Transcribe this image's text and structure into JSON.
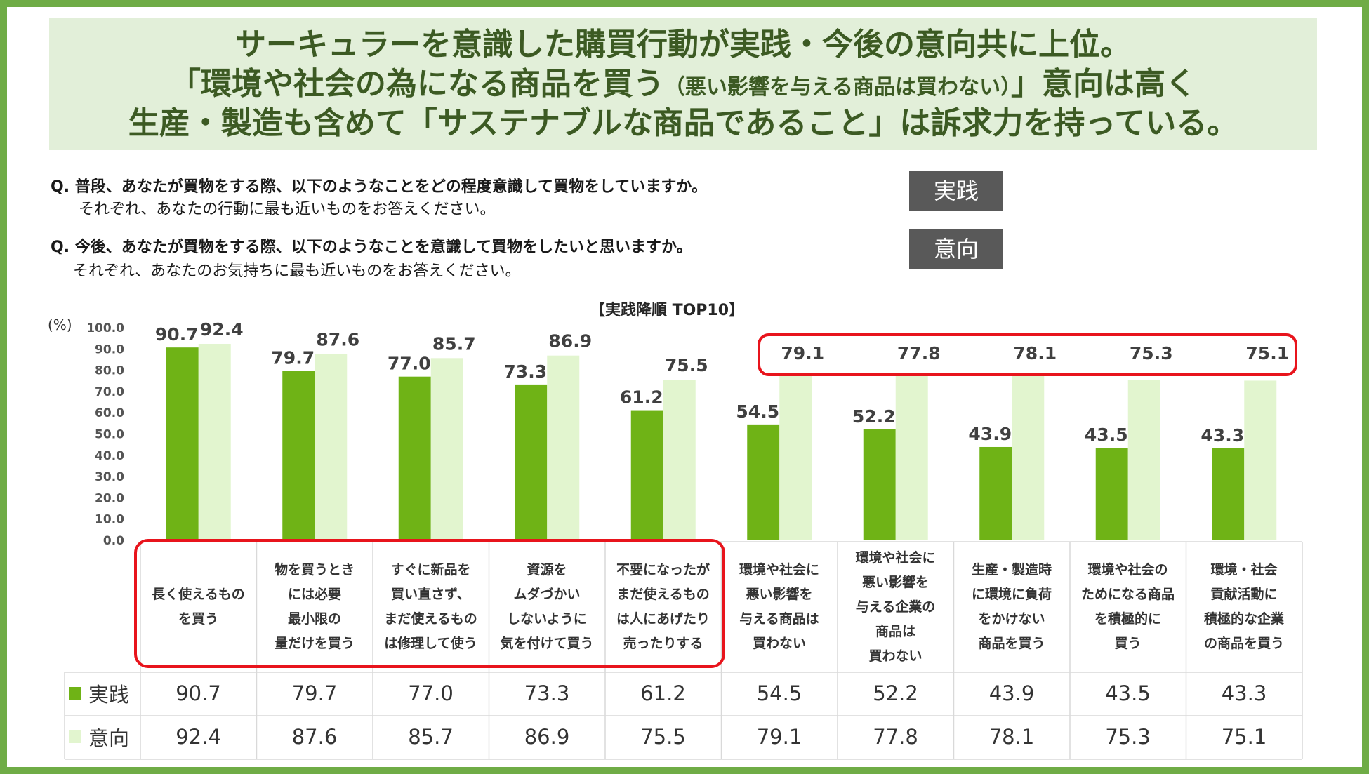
{
  "header": {
    "line1": "サーキュラーを意識した購買行動が実践・今後の意向共に上位。",
    "line2_a": "「環境や社会の為になる商品を買う",
    "line2_small": "（悪い影響を与える商品は買わない）",
    "line2_b": "」意向は高く",
    "line3": "生産・製造も含めて「サステナブルな商品であること」は訴求力を持っている。"
  },
  "questions": {
    "q1": "Q.  普段、あなたが買物をする際、以下のようなことをどの程度意識して買物をしていますか。",
    "q1_sub": "それぞれ、あなたの行動に最も近いものをお答えください。",
    "q2": "Q.  今後、あなたが買物をする際、以下のようなことを意識して買物をしたいと思いますか。",
    "q2_sub": "それぞれ、あなたのお気持ちに最も近いものをお答えください。",
    "badge1": "実践",
    "badge2": "意向"
  },
  "colors": {
    "practice": "#6fb316",
    "intention": "#e2f5cf",
    "frame": "#6fac46",
    "highlight": "#e8141c"
  },
  "chart_data": {
    "type": "bar",
    "title": "【実践降順 TOP10】",
    "ylabel": "(%)",
    "ylim": [
      0,
      100
    ],
    "yticks": [
      "0.0",
      "10.0",
      "20.0",
      "30.0",
      "40.0",
      "50.0",
      "60.0",
      "70.0",
      "80.0",
      "90.0",
      "100.0"
    ],
    "categories": [
      "長く使えるもの\nを買う",
      "物を買うとき\nには必要\n最小限の\n量だけを買う",
      "すぐに新品を\n買い直さず、\nまだ使えるもの\nは修理して使う",
      "資源を\nムダづかい\nしないように\n気を付けて買う",
      "不要になったが\nまだ使えるもの\nは人にあげたり\n売ったりする",
      "環境や社会に\n悪い影響を\n与える商品は\n買わない",
      "環境や社会に\n悪い影響を\n与える企業の\n商品は\n買わない",
      "生産・製造時\nに環境に負荷\nをかけない\n商品を買う",
      "環境や社会の\nためになる商品\nを積極的に\n買う",
      "環境・社会\n貢献活動に\n積極的な企業\nの商品を買う"
    ],
    "series": [
      {
        "name": "実践",
        "values": [
          90.7,
          79.7,
          77.0,
          73.3,
          61.2,
          54.5,
          52.2,
          43.9,
          43.5,
          43.3
        ],
        "labels": [
          "90.7",
          "79.7",
          "77.0",
          "73.3",
          "61.2",
          "54.5",
          "52.2",
          "43.9",
          "43.5",
          "43.3"
        ]
      },
      {
        "name": "意向",
        "values": [
          92.4,
          87.6,
          85.7,
          86.9,
          75.5,
          79.1,
          77.8,
          78.1,
          75.3,
          75.1
        ],
        "labels": [
          "92.4",
          "87.6",
          "85.7",
          "86.9",
          "75.5",
          "79.1",
          "77.8",
          "78.1",
          "75.3",
          "75.1"
        ]
      }
    ]
  }
}
